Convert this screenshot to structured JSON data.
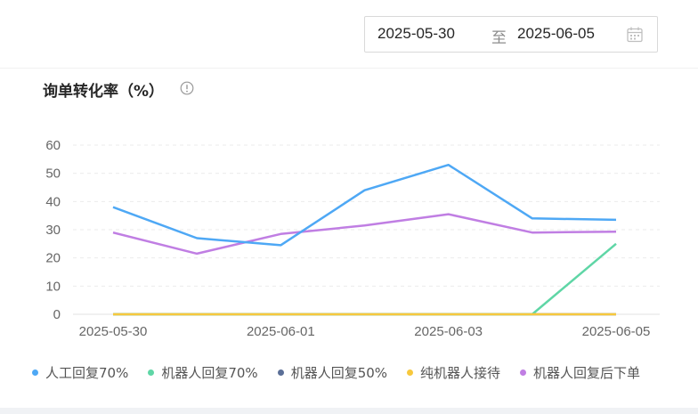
{
  "date_range": {
    "start": "2025-05-30",
    "separator": "至",
    "end": "2025-06-05"
  },
  "chart_title": "询单转化率（%）",
  "chart_data": {
    "type": "line",
    "title": "询单转化率（%）",
    "x": [
      "2025-05-30",
      "2025-05-31",
      "2025-06-01",
      "2025-06-02",
      "2025-06-03",
      "2025-06-04",
      "2025-06-05"
    ],
    "x_tick_labels": [
      "2025-05-30",
      "2025-06-01",
      "2025-06-03",
      "2025-06-05"
    ],
    "ylim": [
      0,
      60
    ],
    "y_ticks": [
      0,
      10,
      20,
      30,
      40,
      50,
      60
    ],
    "grid": true,
    "legend_position": "bottom",
    "series": [
      {
        "name": "人工回复70%",
        "color": "#4ea8f5",
        "values": [
          38,
          27,
          24.5,
          44,
          53,
          34,
          33.5
        ]
      },
      {
        "name": "机器人回复70%",
        "color": "#5fd6a6",
        "values": [
          0,
          0,
          0,
          0,
          0,
          0,
          25
        ]
      },
      {
        "name": "机器人回复50%",
        "color": "#5b6f97",
        "values": [
          0,
          0,
          0,
          0,
          0,
          0,
          0
        ]
      },
      {
        "name": "纯机器人接待",
        "color": "#f7c83d",
        "values": [
          0,
          0,
          0,
          0,
          0,
          0,
          0
        ]
      },
      {
        "name": "机器人回复后下单",
        "color": "#c07ee3",
        "values": [
          29,
          21.5,
          28.5,
          31.5,
          35.5,
          29,
          29.3
        ]
      }
    ]
  }
}
